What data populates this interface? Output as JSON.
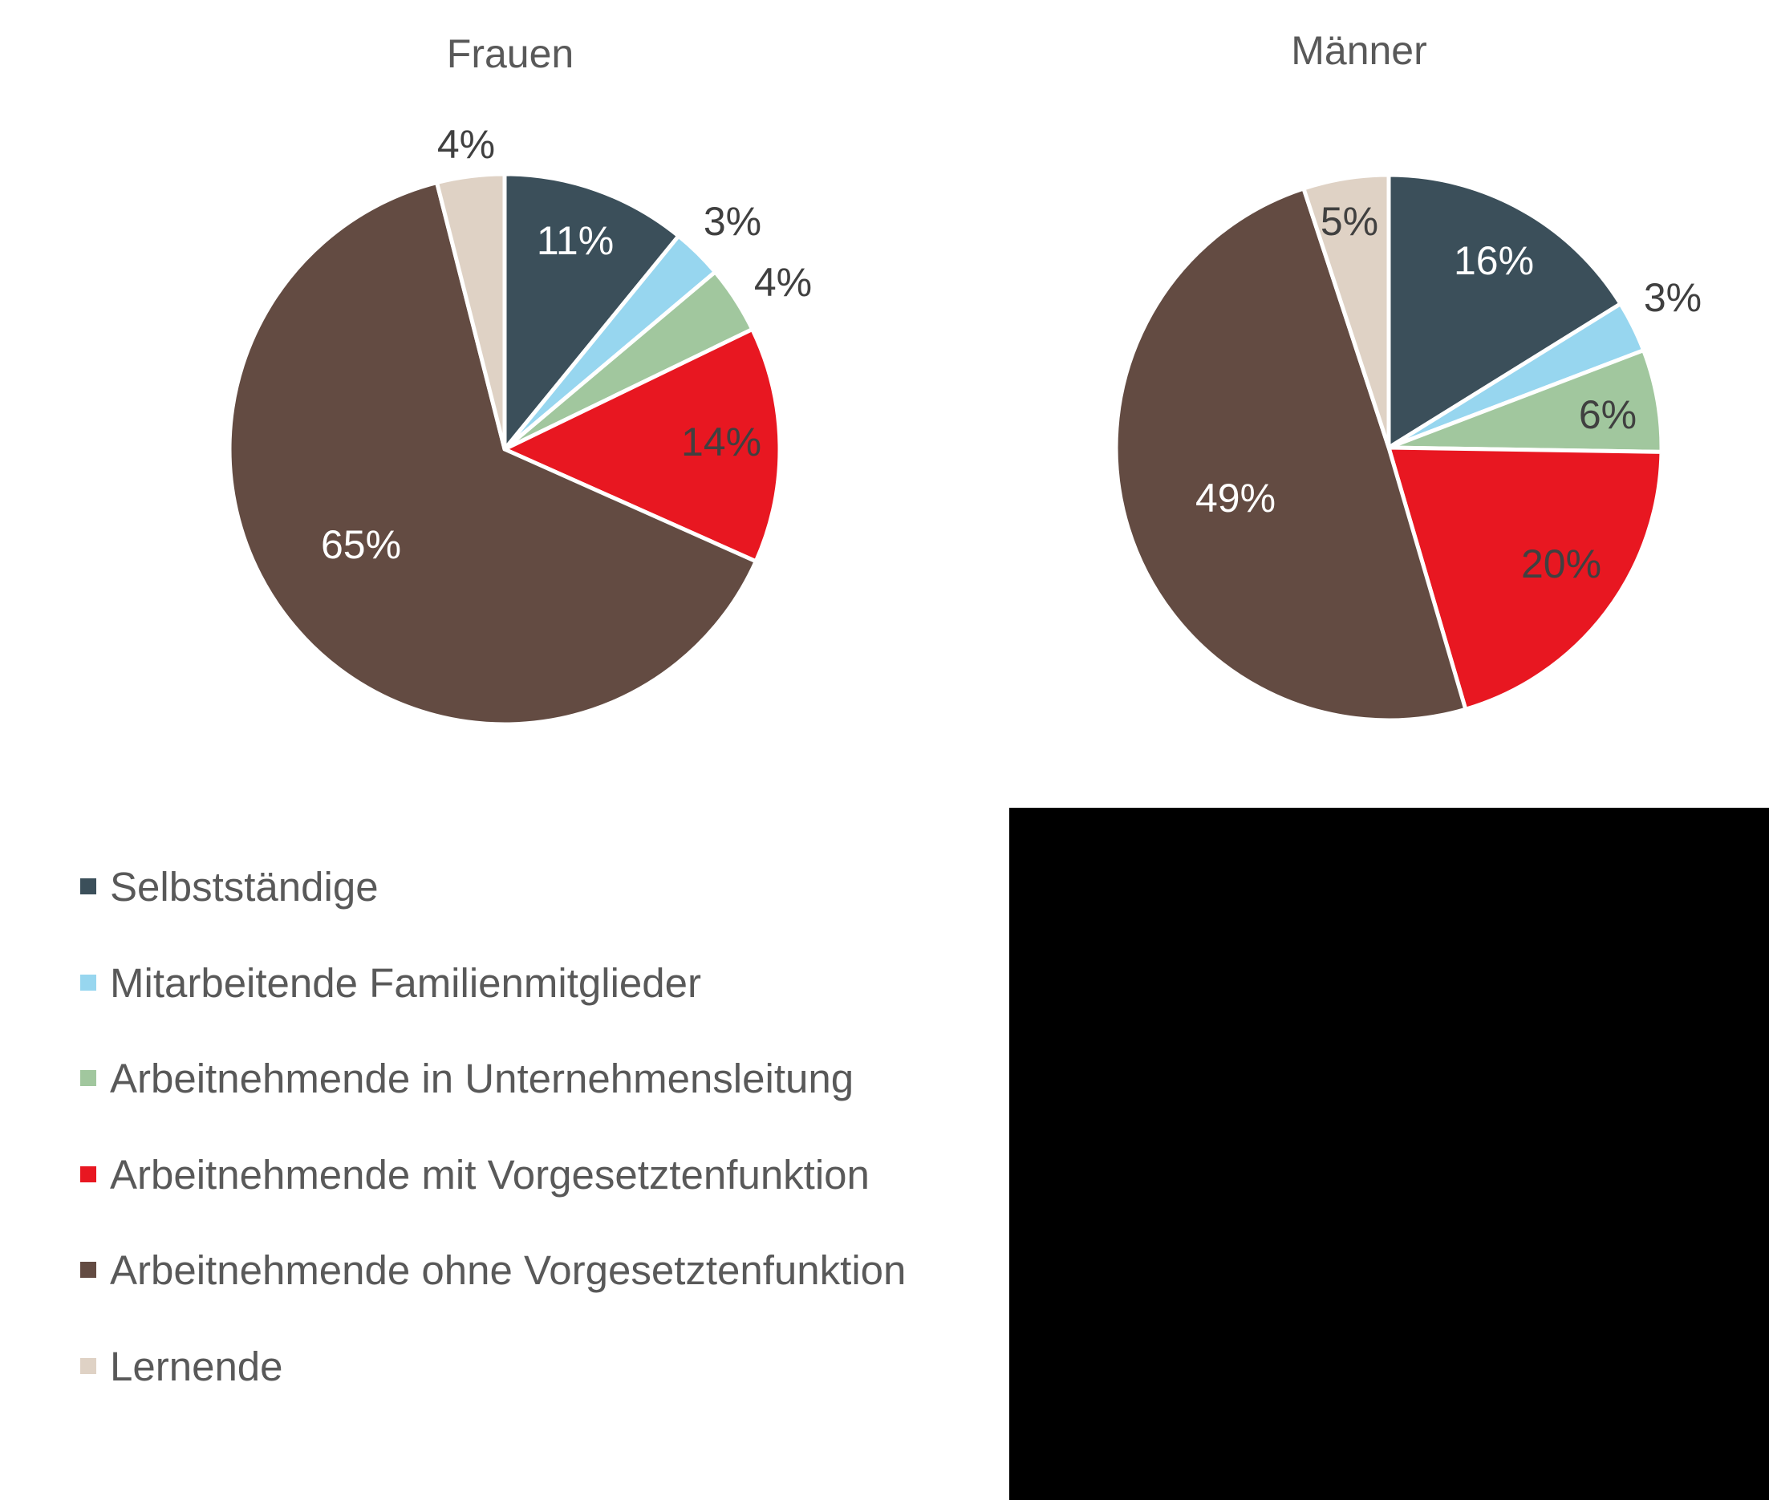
{
  "chart_data": [
    {
      "type": "pie",
      "title": "Frauen",
      "categories": [
        "Selbstständige",
        "Mitarbeitende Familienmitglieder",
        "Arbeitnehmende in Unternehmensleitung",
        "Arbeitnehmende mit Vorgesetztenfunktion",
        "Arbeitnehmende ohne Vorgesetztenfunktion",
        "Lernende"
      ],
      "values": [
        11,
        3,
        4,
        14,
        65,
        4
      ],
      "labels": [
        "11%",
        "3%",
        "4%",
        "14%",
        "65%",
        "4%"
      ],
      "start_angle": "12 o'clock, clockwise"
    },
    {
      "type": "pie",
      "title": "Männer",
      "categories": [
        "Selbstständige",
        "Mitarbeitende Familienmitglieder",
        "Arbeitnehmende in Unternehmensleitung",
        "Arbeitnehmende mit Vorgesetztenfunktion",
        "Arbeitnehmende ohne Vorgesetztenfunktion",
        "Lernende"
      ],
      "values": [
        16,
        3,
        6,
        20,
        49,
        5
      ],
      "labels": [
        "16%",
        "3%",
        "6%",
        "20%",
        "49%",
        "5%"
      ],
      "start_angle": "12 o'clock, clockwise"
    }
  ],
  "charts": {
    "frauen": {
      "title": "Frauen"
    },
    "maenner": {
      "title": "Männer"
    }
  },
  "legend": {
    "position": "bottom-left",
    "items": [
      {
        "label": "Selbstständige",
        "color": "#3B4F5A"
      },
      {
        "label": "Mitarbeitende Familienmitglieder",
        "color": "#97D6EF"
      },
      {
        "label": "Arbeitnehmende in Unternehmensleitung",
        "color": "#A1C79E"
      },
      {
        "label": "Arbeitnehmende mit Vorgesetztenfunktion",
        "color": "#E81721"
      },
      {
        "label": "Arbeitnehmende ohne Vorgesetztenfunktion",
        "color": "#634B42"
      },
      {
        "label": "Lernende",
        "color": "#DFD2C5"
      }
    ]
  },
  "colors": {
    "label_dark": "#404040",
    "label_light": "#FFFFFF",
    "title": "#595959",
    "slice_border": "#FFFFFF",
    "redacted_box": "#000000"
  }
}
